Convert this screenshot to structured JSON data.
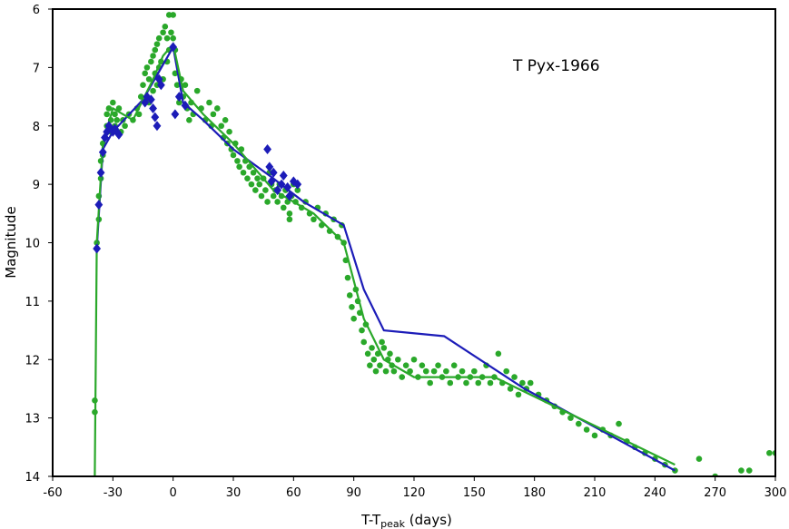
{
  "chart_data": {
    "type": "scatter",
    "title": "T Pyx-1966",
    "xlabel_main": "T-T",
    "xlabel_sub": "peak",
    "xlabel_tail": " (days)",
    "ylabel": "Magnitude",
    "xlim": [
      -60,
      300
    ],
    "ylim": [
      6,
      14
    ],
    "y_inverted": true,
    "xticks": [
      -60,
      -30,
      0,
      30,
      60,
      90,
      120,
      150,
      180,
      210,
      240,
      270,
      300
    ],
    "yticks": [
      6,
      7,
      8,
      9,
      10,
      11,
      12,
      13,
      14
    ],
    "colors": {
      "green": "#2aa82a",
      "blue": "#1c1cb8"
    },
    "series": [
      {
        "name": "green-points",
        "kind": "scatter",
        "color": "#2aa82a",
        "points": [
          [
            -39,
            12.7
          ],
          [
            -39,
            12.9
          ],
          [
            -38,
            10.0
          ],
          [
            -38,
            10.1
          ],
          [
            -37,
            9.6
          ],
          [
            -37,
            9.2
          ],
          [
            -36,
            8.9
          ],
          [
            -36,
            8.6
          ],
          [
            -35,
            8.5
          ],
          [
            -35,
            8.3
          ],
          [
            -34,
            8.2
          ],
          [
            -33,
            8.0
          ],
          [
            -33,
            7.8
          ],
          [
            -32,
            7.7
          ],
          [
            -31,
            7.9
          ],
          [
            -31,
            8.1
          ],
          [
            -30,
            7.6
          ],
          [
            -29,
            7.8
          ],
          [
            -29,
            8.0
          ],
          [
            -28,
            7.9
          ],
          [
            -27,
            7.7
          ],
          [
            -26,
            8.1
          ],
          [
            -25,
            7.9
          ],
          [
            -24,
            8.0
          ],
          [
            -22,
            7.8
          ],
          [
            -20,
            7.9
          ],
          [
            -18,
            7.7
          ],
          [
            -17,
            7.8
          ],
          [
            -16,
            7.5
          ],
          [
            -15,
            7.3
          ],
          [
            -14,
            7.1
          ],
          [
            -13,
            7.0
          ],
          [
            -12,
            7.2
          ],
          [
            -12,
            7.6
          ],
          [
            -11,
            6.9
          ],
          [
            -10,
            6.8
          ],
          [
            -10,
            7.4
          ],
          [
            -9,
            6.7
          ],
          [
            -9,
            7.1
          ],
          [
            -8,
            6.6
          ],
          [
            -8,
            7.3
          ],
          [
            -7,
            6.5
          ],
          [
            -7,
            7.0
          ],
          [
            -6,
            6.9
          ],
          [
            -5,
            6.4
          ],
          [
            -5,
            7.2
          ],
          [
            -4,
            6.3
          ],
          [
            -3,
            6.5
          ],
          [
            -3,
            6.9
          ],
          [
            -2,
            6.1
          ],
          [
            -2,
            6.7
          ],
          [
            -1,
            6.4
          ],
          [
            0,
            6.1
          ],
          [
            0,
            6.5
          ],
          [
            1,
            6.7
          ],
          [
            1,
            7.1
          ],
          [
            2,
            7.3
          ],
          [
            3,
            7.6
          ],
          [
            4,
            7.2
          ],
          [
            5,
            7.5
          ],
          [
            6,
            7.3
          ],
          [
            7,
            7.7
          ],
          [
            8,
            7.9
          ],
          [
            9,
            7.6
          ],
          [
            10,
            7.8
          ],
          [
            12,
            7.4
          ],
          [
            14,
            7.7
          ],
          [
            16,
            7.9
          ],
          [
            18,
            7.6
          ],
          [
            19,
            8.0
          ],
          [
            20,
            7.8
          ],
          [
            22,
            7.7
          ],
          [
            24,
            8.0
          ],
          [
            25,
            8.2
          ],
          [
            26,
            7.9
          ],
          [
            27,
            8.3
          ],
          [
            28,
            8.1
          ],
          [
            29,
            8.4
          ],
          [
            30,
            8.5
          ],
          [
            31,
            8.3
          ],
          [
            32,
            8.6
          ],
          [
            33,
            8.7
          ],
          [
            34,
            8.4
          ],
          [
            35,
            8.8
          ],
          [
            36,
            8.6
          ],
          [
            37,
            8.9
          ],
          [
            38,
            8.7
          ],
          [
            39,
            9.0
          ],
          [
            40,
            8.8
          ],
          [
            41,
            9.1
          ],
          [
            42,
            8.9
          ],
          [
            43,
            9.0
          ],
          [
            44,
            9.2
          ],
          [
            45,
            8.9
          ],
          [
            46,
            9.1
          ],
          [
            47,
            9.3
          ],
          [
            48,
            8.8
          ],
          [
            49,
            9.0
          ],
          [
            50,
            9.2
          ],
          [
            51,
            9.1
          ],
          [
            52,
            9.3
          ],
          [
            53,
            9.0
          ],
          [
            54,
            9.2
          ],
          [
            55,
            9.4
          ],
          [
            56,
            9.1
          ],
          [
            57,
            9.3
          ],
          [
            58,
            9.5
          ],
          [
            58,
            9.6
          ],
          [
            59,
            9.2
          ],
          [
            60,
            9.0
          ],
          [
            61,
            9.3
          ],
          [
            62,
            9.1
          ],
          [
            64,
            9.4
          ],
          [
            66,
            9.3
          ],
          [
            68,
            9.5
          ],
          [
            70,
            9.6
          ],
          [
            72,
            9.4
          ],
          [
            74,
            9.7
          ],
          [
            76,
            9.5
          ],
          [
            78,
            9.8
          ],
          [
            80,
            9.6
          ],
          [
            82,
            9.9
          ],
          [
            84,
            9.7
          ],
          [
            85,
            10.0
          ],
          [
            86,
            10.3
          ],
          [
            87,
            10.6
          ],
          [
            88,
            10.9
          ],
          [
            89,
            11.1
          ],
          [
            90,
            11.3
          ],
          [
            91,
            10.8
          ],
          [
            92,
            11.0
          ],
          [
            93,
            11.2
          ],
          [
            94,
            11.5
          ],
          [
            95,
            11.7
          ],
          [
            96,
            11.4
          ],
          [
            97,
            11.9
          ],
          [
            98,
            12.1
          ],
          [
            99,
            11.8
          ],
          [
            100,
            12.0
          ],
          [
            101,
            12.2
          ],
          [
            102,
            11.9
          ],
          [
            103,
            12.1
          ],
          [
            104,
            11.7
          ],
          [
            105,
            11.8
          ],
          [
            106,
            12.2
          ],
          [
            107,
            12.0
          ],
          [
            108,
            11.9
          ],
          [
            109,
            12.1
          ],
          [
            110,
            12.2
          ],
          [
            112,
            12.0
          ],
          [
            114,
            12.3
          ],
          [
            116,
            12.1
          ],
          [
            118,
            12.2
          ],
          [
            120,
            12.0
          ],
          [
            122,
            12.3
          ],
          [
            124,
            12.1
          ],
          [
            126,
            12.2
          ],
          [
            128,
            12.4
          ],
          [
            130,
            12.2
          ],
          [
            132,
            12.1
          ],
          [
            134,
            12.3
          ],
          [
            136,
            12.2
          ],
          [
            138,
            12.4
          ],
          [
            140,
            12.1
          ],
          [
            142,
            12.3
          ],
          [
            144,
            12.2
          ],
          [
            146,
            12.4
          ],
          [
            148,
            12.3
          ],
          [
            150,
            12.2
          ],
          [
            152,
            12.4
          ],
          [
            154,
            12.3
          ],
          [
            156,
            12.1
          ],
          [
            158,
            12.4
          ],
          [
            160,
            12.3
          ],
          [
            162,
            11.9
          ],
          [
            164,
            12.4
          ],
          [
            166,
            12.2
          ],
          [
            168,
            12.5
          ],
          [
            170,
            12.3
          ],
          [
            172,
            12.6
          ],
          [
            174,
            12.4
          ],
          [
            176,
            12.5
          ],
          [
            178,
            12.4
          ],
          [
            182,
            12.6
          ],
          [
            186,
            12.7
          ],
          [
            190,
            12.8
          ],
          [
            194,
            12.9
          ],
          [
            198,
            13.0
          ],
          [
            202,
            13.1
          ],
          [
            206,
            13.2
          ],
          [
            210,
            13.3
          ],
          [
            214,
            13.2
          ],
          [
            218,
            13.3
          ],
          [
            222,
            13.1
          ],
          [
            226,
            13.4
          ],
          [
            230,
            13.5
          ],
          [
            235,
            13.6
          ],
          [
            240,
            13.7
          ],
          [
            245,
            13.8
          ],
          [
            250,
            13.9
          ],
          [
            262,
            13.7
          ],
          [
            270,
            14.0
          ],
          [
            283,
            13.9
          ],
          [
            287,
            13.9
          ],
          [
            297,
            13.6
          ],
          [
            300,
            13.6
          ]
        ]
      },
      {
        "name": "blue-points",
        "kind": "scatter-diamond",
        "color": "#1c1cb8",
        "points": [
          [
            -38,
            10.1
          ],
          [
            -37,
            9.35
          ],
          [
            -36,
            8.8
          ],
          [
            -35,
            8.45
          ],
          [
            -34,
            8.2
          ],
          [
            -33,
            8.1
          ],
          [
            -32,
            8.0
          ],
          [
            -31,
            8.05
          ],
          [
            -30,
            8.1
          ],
          [
            -29,
            8.05
          ],
          [
            -28,
            8.1
          ],
          [
            -27,
            8.15
          ],
          [
            -14,
            7.6
          ],
          [
            -13,
            7.5
          ],
          [
            -11,
            7.55
          ],
          [
            -10,
            7.7
          ],
          [
            -9,
            7.85
          ],
          [
            -8,
            8.0
          ],
          [
            -7,
            7.2
          ],
          [
            -6,
            7.3
          ],
          [
            0,
            6.65
          ],
          [
            1,
            7.8
          ],
          [
            3,
            7.5
          ],
          [
            6,
            7.65
          ],
          [
            47,
            8.4
          ],
          [
            48,
            8.7
          ],
          [
            49,
            8.95
          ],
          [
            50,
            8.8
          ],
          [
            52,
            9.1
          ],
          [
            54,
            9.0
          ],
          [
            55,
            8.85
          ],
          [
            57,
            9.05
          ],
          [
            58,
            9.2
          ],
          [
            60,
            8.95
          ],
          [
            62,
            9.0
          ]
        ]
      },
      {
        "name": "green-line",
        "kind": "line",
        "color": "#2aa82a",
        "points": [
          [
            -39,
            14.0
          ],
          [
            -38,
            10.0
          ],
          [
            -35,
            8.3
          ],
          [
            -30,
            7.7
          ],
          [
            -20,
            7.9
          ],
          [
            -10,
            7.2
          ],
          [
            -5,
            6.8
          ],
          [
            0,
            6.6
          ],
          [
            5,
            7.4
          ],
          [
            15,
            7.8
          ],
          [
            30,
            8.3
          ],
          [
            50,
            9.1
          ],
          [
            70,
            9.5
          ],
          [
            85,
            10.0
          ],
          [
            95,
            11.3
          ],
          [
            105,
            12.0
          ],
          [
            120,
            12.3
          ],
          [
            160,
            12.3
          ],
          [
            250,
            13.8
          ]
        ]
      },
      {
        "name": "blue-line",
        "kind": "line",
        "color": "#1c1cb8",
        "points": [
          [
            -38,
            10.1
          ],
          [
            -35,
            8.4
          ],
          [
            -30,
            8.1
          ],
          [
            -15,
            7.55
          ],
          [
            0,
            6.65
          ],
          [
            5,
            7.6
          ],
          [
            15,
            7.9
          ],
          [
            30,
            8.4
          ],
          [
            50,
            8.9
          ],
          [
            65,
            9.3
          ],
          [
            85,
            9.7
          ],
          [
            95,
            10.8
          ],
          [
            105,
            11.5
          ],
          [
            135,
            11.6
          ],
          [
            175,
            12.5
          ],
          [
            250,
            13.9
          ]
        ]
      }
    ]
  }
}
